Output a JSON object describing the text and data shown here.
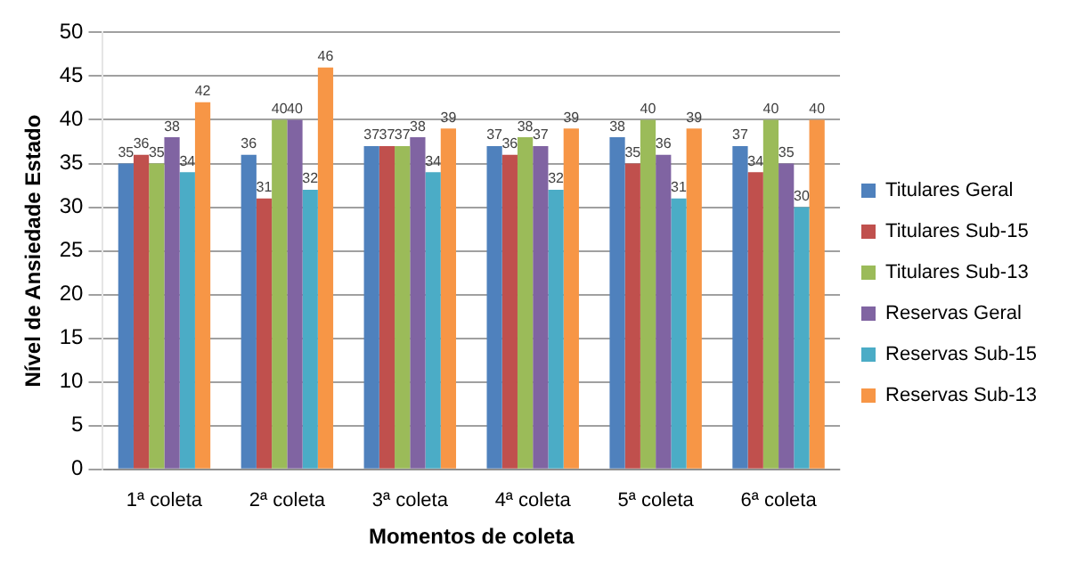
{
  "chart_data": {
    "type": "bar",
    "xlabel": "Momentos de coleta",
    "ylabel": "Nível de Ansiedade Estado",
    "categories": [
      "1ª coleta",
      "2ª coleta",
      "3ª coleta",
      "4ª coleta",
      "5ª coleta",
      "6ª coleta"
    ],
    "series": [
      {
        "name": "Titulares Geral",
        "color": "#4f81bd",
        "values": [
          35,
          36,
          37,
          37,
          38,
          37
        ]
      },
      {
        "name": "Titulares Sub-15",
        "color": "#c0504d",
        "values": [
          36,
          31,
          37,
          36,
          35,
          34
        ]
      },
      {
        "name": "Titulares Sub-13",
        "color": "#9bbb59",
        "values": [
          35,
          40,
          37,
          38,
          40,
          40
        ]
      },
      {
        "name": "Reservas Geral",
        "color": "#8064a2",
        "values": [
          38,
          40,
          38,
          37,
          36,
          35
        ]
      },
      {
        "name": "Reservas Sub-15",
        "color": "#4bacc6",
        "values": [
          34,
          32,
          34,
          32,
          31,
          30
        ]
      },
      {
        "name": "Reservas Sub-13",
        "color": "#f79646",
        "values": [
          42,
          46,
          39,
          39,
          39,
          40
        ]
      }
    ],
    "ylim": [
      0,
      50
    ],
    "yticks": [
      0,
      5,
      10,
      15,
      20,
      25,
      30,
      35,
      40,
      45,
      50
    ],
    "grid": "y",
    "legend": "right",
    "data_labels": true
  }
}
